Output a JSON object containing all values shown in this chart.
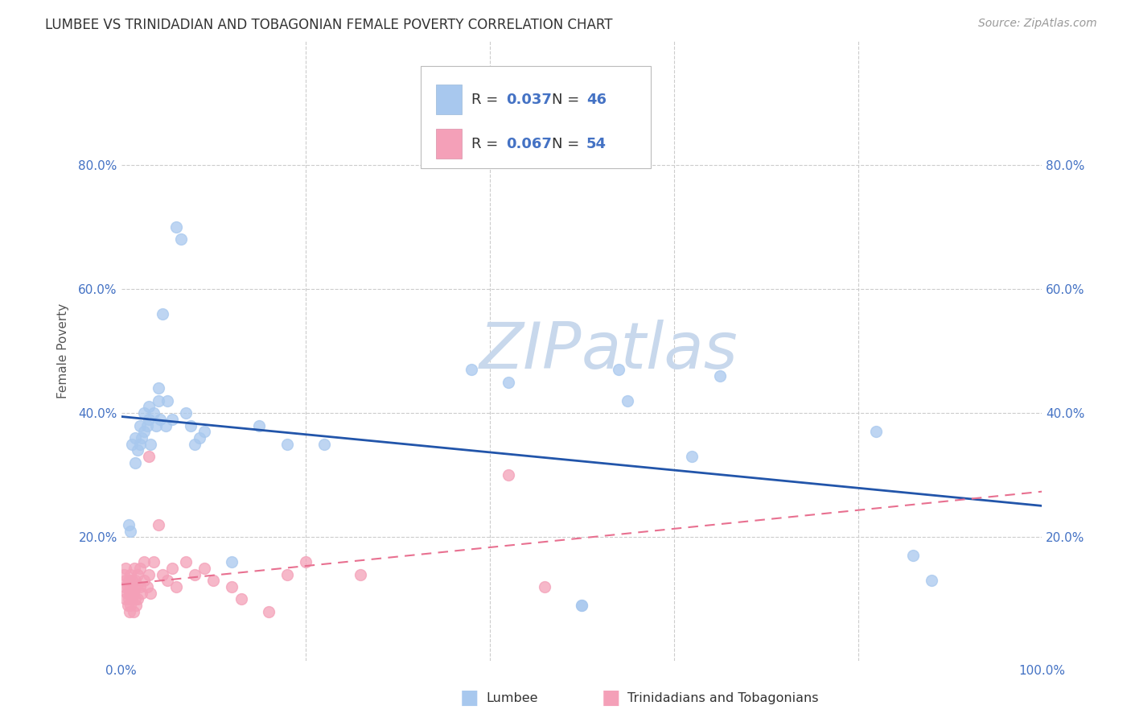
{
  "title": "LUMBEE VS TRINIDADIAN AND TOBAGONIAN FEMALE POVERTY CORRELATION CHART",
  "source": "Source: ZipAtlas.com",
  "ylabel": "Female Poverty",
  "xlim": [
    0,
    1.0
  ],
  "ylim": [
    0,
    1.0
  ],
  "legend_lumbee_R": "0.037",
  "legend_lumbee_N": "46",
  "legend_trini_R": "0.067",
  "legend_trini_N": "54",
  "lumbee_color": "#a8c8ee",
  "trini_color": "#f4a0b8",
  "lumbee_line_color": "#2255aa",
  "trini_line_color": "#e87090",
  "watermark_color": "#c8d8ec",
  "background_color": "#ffffff",
  "grid_color": "#cccccc",
  "tick_color": "#4472c4",
  "label_color": "#555555",
  "lumbee_x": [
    0.008,
    0.01,
    0.012,
    0.015,
    0.015,
    0.018,
    0.02,
    0.02,
    0.022,
    0.025,
    0.025,
    0.028,
    0.03,
    0.03,
    0.032,
    0.035,
    0.038,
    0.04,
    0.04,
    0.042,
    0.045,
    0.048,
    0.05,
    0.055,
    0.06,
    0.065,
    0.07,
    0.075,
    0.08,
    0.085,
    0.09,
    0.12,
    0.15,
    0.18,
    0.22,
    0.38,
    0.42,
    0.5,
    0.54,
    0.55,
    0.62,
    0.65,
    0.82,
    0.86,
    0.88,
    0.5
  ],
  "lumbee_y": [
    0.22,
    0.21,
    0.35,
    0.32,
    0.36,
    0.34,
    0.35,
    0.38,
    0.36,
    0.4,
    0.37,
    0.38,
    0.39,
    0.41,
    0.35,
    0.4,
    0.38,
    0.42,
    0.44,
    0.39,
    0.56,
    0.38,
    0.42,
    0.39,
    0.7,
    0.68,
    0.4,
    0.38,
    0.35,
    0.36,
    0.37,
    0.16,
    0.38,
    0.35,
    0.35,
    0.47,
    0.45,
    0.09,
    0.47,
    0.42,
    0.33,
    0.46,
    0.37,
    0.17,
    0.13,
    0.09
  ],
  "trini_x": [
    0.003,
    0.004,
    0.005,
    0.005,
    0.005,
    0.006,
    0.007,
    0.007,
    0.008,
    0.008,
    0.009,
    0.009,
    0.01,
    0.01,
    0.01,
    0.012,
    0.012,
    0.013,
    0.013,
    0.014,
    0.014,
    0.015,
    0.015,
    0.016,
    0.016,
    0.018,
    0.018,
    0.02,
    0.02,
    0.022,
    0.025,
    0.025,
    0.028,
    0.03,
    0.03,
    0.032,
    0.035,
    0.04,
    0.045,
    0.05,
    0.055,
    0.06,
    0.07,
    0.08,
    0.09,
    0.1,
    0.12,
    0.13,
    0.16,
    0.18,
    0.2,
    0.26,
    0.42,
    0.46
  ],
  "trini_y": [
    0.14,
    0.12,
    0.1,
    0.13,
    0.15,
    0.11,
    0.09,
    0.12,
    0.1,
    0.13,
    0.08,
    0.11,
    0.09,
    0.12,
    0.14,
    0.1,
    0.13,
    0.08,
    0.11,
    0.12,
    0.15,
    0.1,
    0.13,
    0.09,
    0.12,
    0.1,
    0.14,
    0.12,
    0.15,
    0.11,
    0.13,
    0.16,
    0.12,
    0.33,
    0.14,
    0.11,
    0.16,
    0.22,
    0.14,
    0.13,
    0.15,
    0.12,
    0.16,
    0.14,
    0.15,
    0.13,
    0.12,
    0.1,
    0.08,
    0.14,
    0.16,
    0.14,
    0.3,
    0.12
  ]
}
